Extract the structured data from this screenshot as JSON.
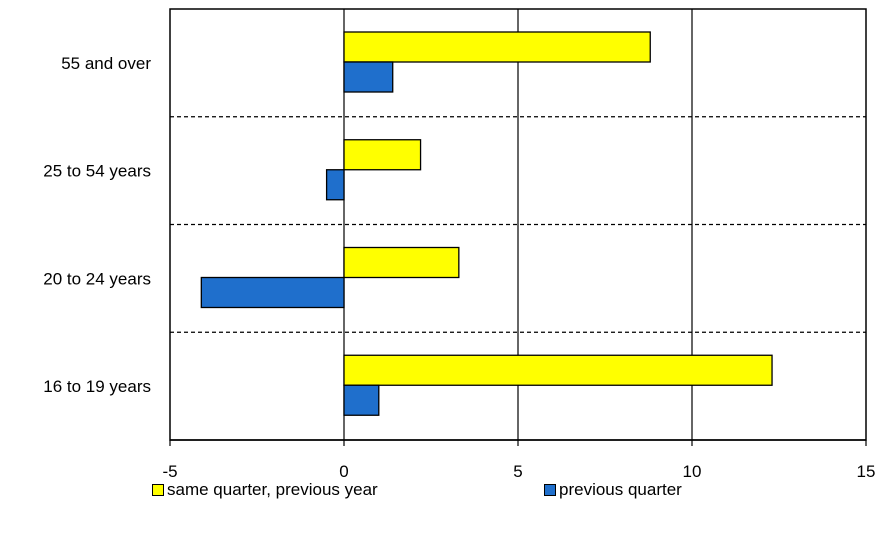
{
  "chart_data": {
    "type": "bar",
    "orientation": "horizontal",
    "categories": [
      "55 and over",
      "25 to 54 years",
      "20 to 24 years",
      "16 to 19 years"
    ],
    "series": [
      {
        "name": "same quarter, previous year",
        "color": "#FFFF00",
        "values": [
          8.8,
          2.2,
          3.3,
          12.3
        ]
      },
      {
        "name": "previous quarter",
        "color": "#1F6FCC",
        "values": [
          1.4,
          -0.5,
          -4.1,
          1.0
        ]
      }
    ],
    "xlim": [
      -5,
      15
    ],
    "xticks": [
      "-5",
      "0",
      "5",
      "10",
      "15"
    ],
    "grid": "vertical solid at tick values; dashed separators between categories",
    "legend": "bottom"
  }
}
